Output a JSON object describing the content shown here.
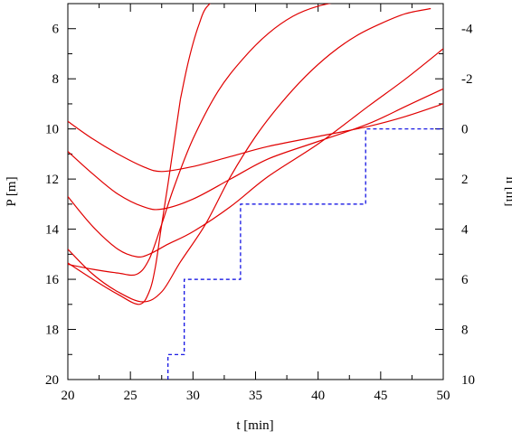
{
  "chart_data": {
    "type": "line",
    "title": "",
    "xlabel": "t [min]",
    "ylabel_left": "P [m]",
    "ylabel_right": "h [m]",
    "xlim": [
      20,
      50
    ],
    "ylim_left": [
      20,
      5
    ],
    "ylim_right": [
      10,
      -5
    ],
    "x_ticks": [
      20,
      25,
      30,
      35,
      40,
      45,
      50
    ],
    "x_tick_labels": [
      "20",
      "25",
      "30",
      "35",
      "40",
      "45",
      "50"
    ],
    "y_left_ticks": [
      6,
      8,
      10,
      12,
      14,
      16,
      18,
      20
    ],
    "y_left_tick_labels": [
      "6",
      "8",
      "10",
      "12",
      "14",
      "16",
      "18",
      "20"
    ],
    "y_right_ticks": [
      -4,
      -2,
      0,
      2,
      4,
      6,
      8,
      10
    ],
    "y_right_tick_labels": [
      "-4",
      "-2",
      "0",
      "2",
      "4",
      "6",
      "8",
      "10"
    ],
    "grid": false,
    "legend": "none",
    "colors": {
      "pressure": "#e00000",
      "head": "#0000e0"
    },
    "series": [
      {
        "axis": "left",
        "x": [
          20,
          22,
          24,
          26,
          27.5,
          30,
          33,
          36,
          40,
          44,
          47,
          50
        ],
        "values": [
          9.7,
          10.4,
          11.0,
          11.5,
          11.7,
          11.5,
          11.1,
          10.7,
          10.3,
          9.9,
          9.5,
          9.0
        ]
      },
      {
        "axis": "left",
        "x": [
          20,
          22,
          24,
          26,
          27.5,
          30,
          33,
          36,
          40,
          44,
          47,
          50
        ],
        "values": [
          10.9,
          11.8,
          12.6,
          13.1,
          13.2,
          12.8,
          12.0,
          11.2,
          10.5,
          9.8,
          9.1,
          8.4
        ]
      },
      {
        "axis": "left",
        "x": [
          20,
          22,
          24,
          25.5,
          26.5,
          28,
          30,
          33,
          36,
          40,
          44,
          47,
          50
        ],
        "values": [
          12.7,
          13.9,
          14.8,
          15.1,
          15.0,
          14.6,
          14.1,
          13.1,
          11.9,
          10.6,
          9.1,
          8.0,
          6.8
        ]
      },
      {
        "axis": "left",
        "x": [
          20,
          22,
          24,
          25.5,
          26.5,
          27.5,
          28.5,
          30,
          32,
          34,
          36,
          38,
          40,
          42,
          43.5
        ],
        "values": [
          15.4,
          15.6,
          15.75,
          15.8,
          15.2,
          13.8,
          12.3,
          10.4,
          8.5,
          7.2,
          6.2,
          5.5,
          5.1,
          4.9,
          4.8
        ]
      },
      {
        "axis": "left",
        "x": [
          20,
          22,
          24,
          26,
          27.5,
          29,
          31,
          33,
          35,
          37,
          39,
          41,
          43,
          45,
          47,
          49
        ],
        "values": [
          14.8,
          15.8,
          16.5,
          16.9,
          16.5,
          15.3,
          13.8,
          11.9,
          10.3,
          9.0,
          7.9,
          7.0,
          6.3,
          5.8,
          5.4,
          5.2
        ]
      },
      {
        "axis": "left",
        "x": [
          20,
          22,
          24,
          25.7,
          26.5,
          27,
          27.5,
          28,
          28.5,
          29
        ],
        "values": [
          15.35,
          16.0,
          16.6,
          17.0,
          16.5,
          15.5,
          13.8,
          12.2,
          10.5,
          8.8
        ]
      },
      {
        "axis": "left",
        "x": [
          29,
          29.5,
          30,
          30.5,
          31,
          32
        ],
        "values": [
          8.8,
          7.6,
          6.6,
          5.8,
          5.2,
          4.7
        ]
      },
      {
        "axis": "right",
        "x": [
          28.0,
          28.0,
          29.3,
          29.3,
          33.8,
          33.8,
          43.8,
          43.8,
          50
        ],
        "values": [
          10,
          9,
          9,
          6,
          6,
          3,
          3,
          0,
          0
        ]
      }
    ]
  }
}
